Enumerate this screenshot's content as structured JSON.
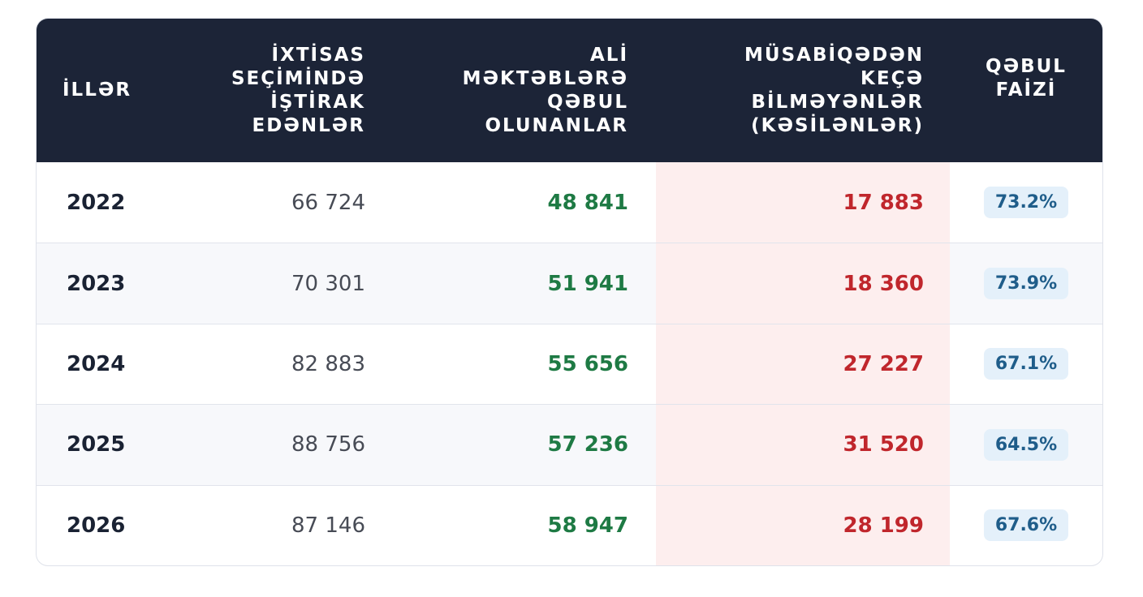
{
  "table": {
    "headers": [
      [
        "İLLƏR"
      ],
      [
        "İXTİSAS",
        "SEÇİMİNDƏ",
        "İŞTİRAK",
        "EDƏNLƏR"
      ],
      [
        "ALİ",
        "MƏKTƏBLƏRƏ",
        "QƏBUL",
        "OLUNANLAR"
      ],
      [
        "MÜSABİQƏDƏN",
        "KEÇƏ",
        "BİLMƏYƏNLƏR",
        "(KƏSİLƏNLƏR)"
      ],
      [
        "QƏBUL",
        "FAİZİ"
      ]
    ],
    "rows": [
      [
        "2022",
        "66 724",
        "48 841",
        "17 883",
        "73.2%"
      ],
      [
        "2023",
        "70 301",
        "51 941",
        "18 360",
        "73.9%"
      ],
      [
        "2024",
        "82 883",
        "55 656",
        "27 227",
        "67.1%"
      ],
      [
        "2025",
        "88 756",
        "57 236",
        "31 520",
        "64.5%"
      ],
      [
        "2026",
        "87 146",
        "58 947",
        "28 199",
        "67.6%"
      ]
    ]
  }
}
